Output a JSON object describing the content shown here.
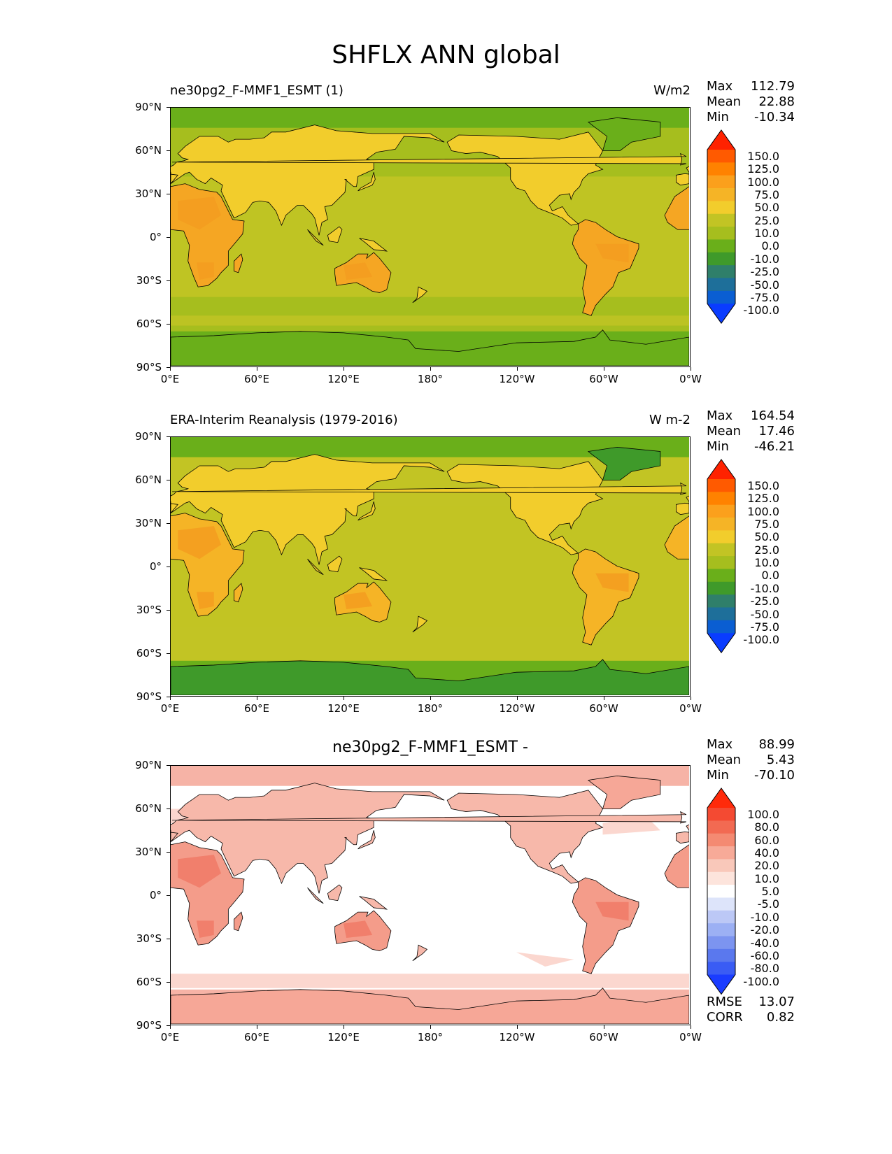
{
  "title": "SHFLX ANN global",
  "lat_labels": [
    "90°N",
    "60°N",
    "30°N",
    "0°",
    "30°S",
    "60°S",
    "90°S"
  ],
  "lon_labels": [
    "0°E",
    "60°E",
    "120°E",
    "180°",
    "120°W",
    "60°W",
    "0°W"
  ],
  "panels": [
    {
      "title_left": "ne30pg2_F-MMF1_ESMT (1)",
      "title_right": "W/m2",
      "title_center": "",
      "stats": [
        {
          "label": "Max",
          "value": "112.79"
        },
        {
          "label": "Mean",
          "value": "22.88"
        },
        {
          "label": "Min",
          "value": "-10.34"
        }
      ],
      "extra_stats": [],
      "colorbar": {
        "levels": [
          "150.0",
          "125.0",
          "100.0",
          "75.0",
          "50.0",
          "25.0",
          "10.0",
          "0.0",
          "-10.0",
          "-25.0",
          "-50.0",
          "-75.0",
          "-100.0"
        ],
        "colors": [
          "#ff2200",
          "#ff5a00",
          "#ff8200",
          "#fba01c",
          "#f5b426",
          "#f2cd2c",
          "#c2c424",
          "#a6be1e",
          "#6aaf1a",
          "#3f9a2a",
          "#2f7f6a",
          "#1e6f9a",
          "#0a5ed2",
          "#0a3cff"
        ]
      },
      "map_colors": {
        "ocean": "#a6be1e",
        "ocean_warm": "#c2c424",
        "polar": "#6aaf1a",
        "land": "#f2cd2c",
        "desert": "#f5a623",
        "desert_hot": "#f39c20",
        "ice": "#6aaf1a"
      }
    },
    {
      "title_left": "ERA-Interim Reanalysis (1979-2016)",
      "title_right": "W m-2",
      "title_center": "",
      "stats": [
        {
          "label": "Max",
          "value": "164.54"
        },
        {
          "label": "Mean",
          "value": "17.46"
        },
        {
          "label": "Min",
          "value": "-46.21"
        }
      ],
      "extra_stats": [],
      "colorbar": {
        "levels": [
          "150.0",
          "125.0",
          "100.0",
          "75.0",
          "50.0",
          "25.0",
          "10.0",
          "0.0",
          "-10.0",
          "-25.0",
          "-50.0",
          "-75.0",
          "-100.0"
        ],
        "colors": [
          "#ff2200",
          "#ff5a00",
          "#ff8200",
          "#fba01c",
          "#f5b426",
          "#f2cd2c",
          "#c2c424",
          "#a6be1e",
          "#6aaf1a",
          "#3f9a2a",
          "#2f7f6a",
          "#1e6f9a",
          "#0a5ed2",
          "#0a3cff"
        ]
      },
      "map_colors": {
        "ocean": "#c2c424",
        "ocean_warm": "#c2c424",
        "polar": "#6aaf1a",
        "land": "#f2cd2c",
        "desert": "#f5b426",
        "desert_hot": "#f39c20",
        "ice": "#3f9a2a"
      }
    },
    {
      "title_left": "",
      "title_right": "",
      "title_center": "ne30pg2_F-MMF1_ESMT -",
      "stats": [
        {
          "label": "Max",
          "value": "88.99"
        },
        {
          "label": "Mean",
          "value": "5.43"
        },
        {
          "label": "Min",
          "value": "-70.10"
        }
      ],
      "extra_stats": [
        {
          "label": "RMSE",
          "value": "13.07"
        },
        {
          "label": "CORR",
          "value": "0.82"
        }
      ],
      "colorbar": {
        "levels": [
          "100.0",
          "80.0",
          "60.0",
          "40.0",
          "20.0",
          "10.0",
          "5.0",
          "-5.0",
          "-10.0",
          "-20.0",
          "-40.0",
          "-60.0",
          "-80.0",
          "-100.0"
        ],
        "colors": [
          "#ff2a0a",
          "#f44a32",
          "#f26a52",
          "#f48a72",
          "#f7aa98",
          "#f9c8ba",
          "#fde4dc",
          "#ffffff",
          "#dde4fa",
          "#bcc8f6",
          "#9cb0f4",
          "#7c94f0",
          "#5a78ee",
          "#3a5cf4",
          "#1a3cff"
        ]
      },
      "map_colors": {
        "ocean": "#ffffff",
        "ocean_warm": "#ffffff",
        "polar": "#f6b3a6",
        "land": "#f7b8aa",
        "desert": "#f49c8a",
        "desert_hot": "#f07a66",
        "ice": "#f6a797"
      }
    }
  ]
}
